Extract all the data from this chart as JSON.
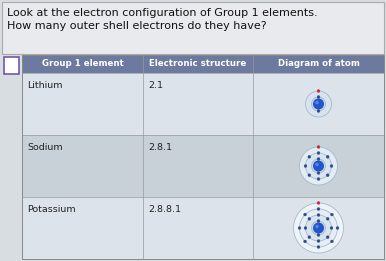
{
  "title_line1": "Look at the electron configuration of Group 1 elements.",
  "title_line2": "How many outer shell electrons do they have?",
  "header": [
    "Group 1 element",
    "Electronic structure",
    "Diagram of atom"
  ],
  "rows": [
    {
      "element": "Lithium",
      "structure": "2.1"
    },
    {
      "element": "Sodium",
      "structure": "2.8.1"
    },
    {
      "element": "Potassium",
      "structure": "2.8.8.1"
    }
  ],
  "header_bg": "#6b7a9e",
  "header_text": "#ffffff",
  "row_bg1": "#dde3ea",
  "row_bg2": "#c8d0d8",
  "row_bg3": "#dde3ea",
  "outer_bg": "#b8c0c8",
  "title_bg": "#e8eaec",
  "nucleus_color": "#2255cc",
  "shell_colors": [
    "#c8d8e8",
    "#d8e4ee",
    "#e4eef4",
    "#eef4f8"
  ],
  "shell_edge": "#a0b8cc",
  "electron_outer": "#cc2233",
  "electron_inner": "#334488",
  "title_fontsize": 8.0,
  "header_fontsize": 6.2,
  "cell_fontsize": 6.8
}
